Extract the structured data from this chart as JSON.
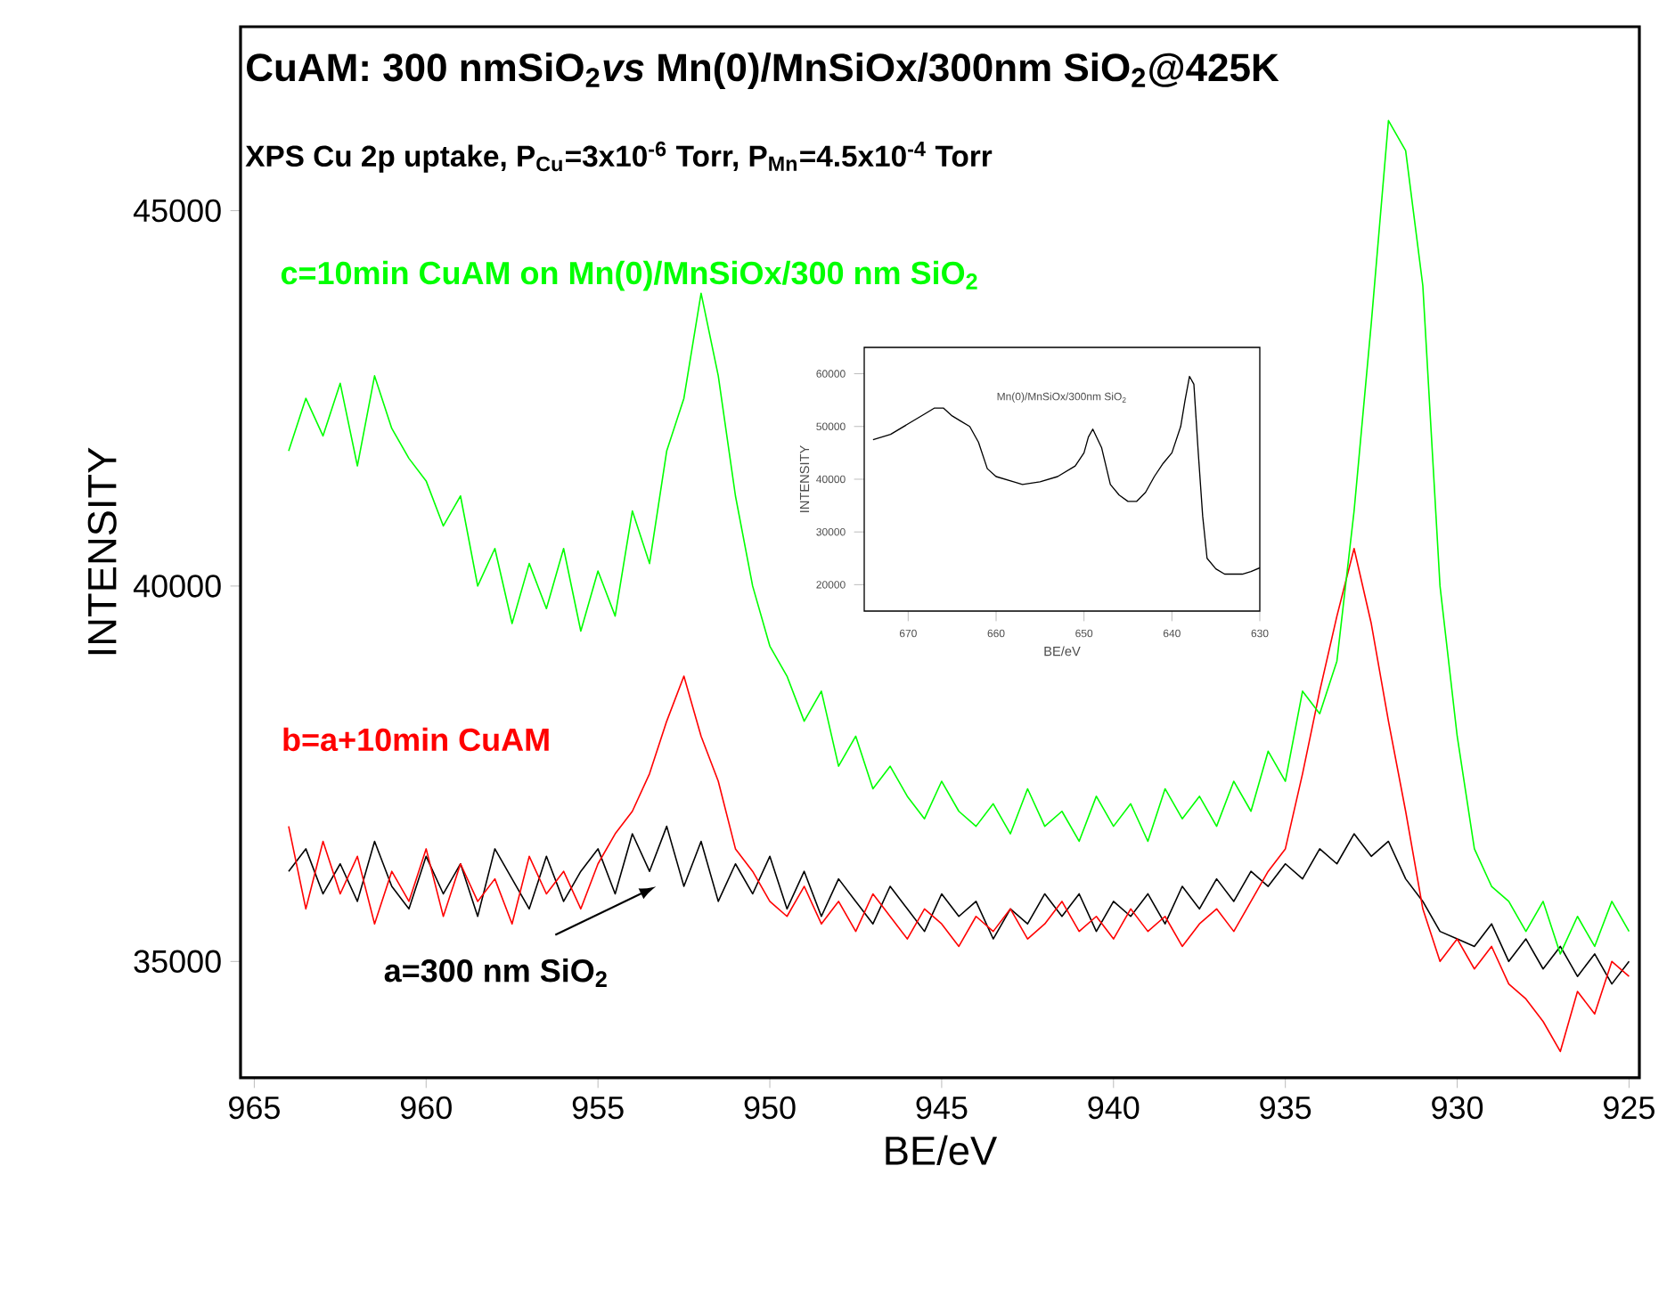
{
  "chart_data": [
    {
      "type": "line",
      "title": "CuAM: 300 nmSiO$_{2}$*vs* Mn(0)/MnSiOx/300nm SiO$_{2}$@425K",
      "subtitle": "XPS Cu 2p uptake, P$_{Cu}$=3x10$^{-6}$ Torr, P$_{Mn}$=4.5x10$^{-4}$ Torr",
      "xlabel": "BE/eV",
      "ylabel": "INTENSITY",
      "xlim": [
        965.4,
        924.7
      ],
      "ylim": [
        33450,
        47450
      ],
      "xticks": [
        965,
        960,
        955,
        950,
        945,
        940,
        935,
        930,
        925
      ],
      "yticks": [
        35000,
        40000,
        45000
      ],
      "x": [
        964.0,
        963.5,
        963.0,
        962.5,
        962.0,
        961.5,
        961.0,
        960.5,
        960.0,
        959.5,
        959.0,
        958.5,
        958.0,
        957.5,
        957.0,
        956.5,
        956.0,
        955.5,
        955.0,
        954.5,
        954.0,
        953.5,
        953.0,
        952.5,
        952.0,
        951.5,
        951.0,
        950.5,
        950.0,
        949.5,
        949.0,
        948.5,
        948.0,
        947.5,
        947.0,
        946.5,
        946.0,
        945.5,
        945.0,
        944.5,
        944.0,
        943.5,
        943.0,
        942.5,
        942.0,
        941.5,
        941.0,
        940.5,
        940.0,
        939.5,
        939.0,
        938.5,
        938.0,
        937.5,
        937.0,
        936.5,
        936.0,
        935.5,
        935.0,
        934.5,
        934.0,
        933.5,
        933.0,
        932.5,
        932.0,
        931.5,
        931.0,
        930.5,
        930.0,
        929.5,
        929.0,
        928.5,
        928.0,
        927.5,
        927.0,
        926.5,
        926.0,
        925.5,
        925.0
      ],
      "series": [
        {
          "name": "a=300 nm SiO$_{2}$",
          "color": "#000000",
          "values": [
            36200,
            36500,
            35900,
            36300,
            35800,
            36600,
            36000,
            35700,
            36400,
            35900,
            36300,
            35600,
            36500,
            36100,
            35700,
            36400,
            35800,
            36200,
            36500,
            35900,
            36700,
            36200,
            36800,
            36000,
            36600,
            35800,
            36300,
            35900,
            36400,
            35700,
            36200,
            35600,
            36100,
            35800,
            35500,
            36000,
            35700,
            35400,
            35900,
            35600,
            35800,
            35300,
            35700,
            35500,
            35900,
            35600,
            35900,
            35400,
            35800,
            35600,
            35900,
            35500,
            36000,
            35700,
            36100,
            35800,
            36200,
            36000,
            36300,
            36100,
            36500,
            36300,
            36700,
            36400,
            36600,
            36100,
            35800,
            35400,
            35300,
            35200,
            35500,
            35000,
            35300,
            34900,
            35200,
            34800,
            35100,
            34700,
            35000
          ]
        },
        {
          "name": "b=a+10min CuAM",
          "color": "#ff0000",
          "values": [
            36800,
            35700,
            36600,
            35900,
            36400,
            35500,
            36200,
            35800,
            36500,
            35600,
            36300,
            35800,
            36100,
            35500,
            36400,
            35900,
            36200,
            35700,
            36300,
            36700,
            37000,
            37500,
            38200,
            38800,
            38000,
            37400,
            36500,
            36200,
            35800,
            35600,
            36000,
            35500,
            35800,
            35400,
            35900,
            35600,
            35300,
            35700,
            35500,
            35200,
            35600,
            35400,
            35700,
            35300,
            35500,
            35800,
            35400,
            35600,
            35300,
            35700,
            35400,
            35600,
            35200,
            35500,
            35700,
            35400,
            35800,
            36200,
            36500,
            37500,
            38600,
            39600,
            40500,
            39500,
            38200,
            37000,
            35700,
            35000,
            35300,
            34900,
            35200,
            34700,
            34500,
            34200,
            33800,
            34600,
            34300,
            35000,
            34800
          ]
        },
        {
          "name": "c=10min CuAM on Mn(0)/MnSiOx/300 nm SiO$_{2}$",
          "color": "#00ff00",
          "values": [
            41800,
            42500,
            42000,
            42700,
            41600,
            42800,
            42100,
            41700,
            41400,
            40800,
            41200,
            40000,
            40500,
            39500,
            40300,
            39700,
            40500,
            39400,
            40200,
            39600,
            41000,
            40300,
            41800,
            42500,
            43900,
            42800,
            41200,
            40000,
            39200,
            38800,
            38200,
            38600,
            37600,
            38000,
            37300,
            37600,
            37200,
            36900,
            37400,
            37000,
            36800,
            37100,
            36700,
            37300,
            36800,
            37000,
            36600,
            37200,
            36800,
            37100,
            36600,
            37300,
            36900,
            37200,
            36800,
            37400,
            37000,
            37800,
            37400,
            38600,
            38300,
            39000,
            41000,
            43500,
            46200,
            45800,
            44000,
            40000,
            38000,
            36500,
            36000,
            35800,
            35400,
            35800,
            35100,
            35600,
            35200,
            35800,
            35400
          ]
        }
      ]
    },
    {
      "type": "line",
      "title": "Mn(0)/MnSiOx/300nm SiO$_{2}$",
      "xlabel": "BE/eV",
      "ylabel": "INTENSITY",
      "xlim": [
        675,
        630
      ],
      "ylim": [
        15000,
        65000
      ],
      "xticks": [
        670,
        660,
        650,
        640,
        630
      ],
      "yticks": [
        20000,
        30000,
        40000,
        50000,
        60000
      ],
      "x": [
        674,
        672,
        670,
        668,
        667,
        666,
        665,
        664,
        663,
        662,
        661,
        660,
        658,
        657,
        655,
        653,
        651,
        650,
        649.5,
        649,
        648,
        647,
        646,
        645,
        644,
        643,
        642,
        641,
        640,
        639,
        638.5,
        638,
        637.5,
        637,
        636.5,
        636,
        635,
        634,
        632,
        631,
        630
      ],
      "series": [
        {
          "color": "#000000",
          "values": [
            47500,
            48500,
            50500,
            52500,
            53500,
            53500,
            52000,
            51000,
            50000,
            47000,
            42000,
            40500,
            39500,
            39000,
            39500,
            40500,
            42500,
            45000,
            48000,
            49500,
            46000,
            39000,
            37000,
            35800,
            35800,
            37500,
            40500,
            43000,
            45000,
            50000,
            55000,
            59500,
            58000,
            45000,
            33000,
            25000,
            23000,
            22000,
            22000,
            22500,
            23200
          ]
        }
      ]
    }
  ]
}
